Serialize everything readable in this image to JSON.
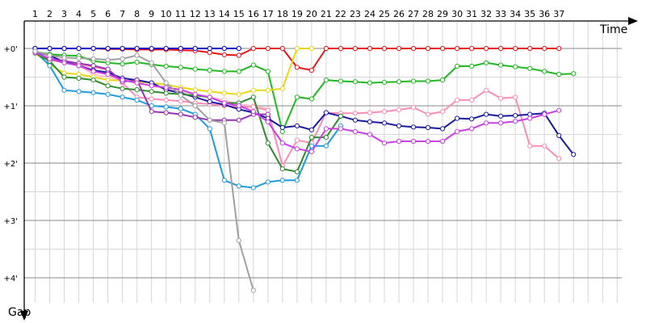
{
  "chart_data": {
    "type": "line",
    "xlabel": "Time",
    "ylabel": "Gap",
    "x_ticks": [
      "1",
      "2",
      "3",
      "4",
      "5",
      "6",
      "7",
      "8",
      "9",
      "10",
      "11",
      "12",
      "13",
      "14",
      "15",
      "16",
      "17",
      "18",
      "19",
      "20",
      "21",
      "22",
      "23",
      "24",
      "25",
      "26",
      "27",
      "28",
      "29",
      "30",
      "31",
      "32",
      "33",
      "34",
      "35",
      "36",
      "37"
    ],
    "y_ticks": [
      "+0'",
      "+1'",
      "+2'",
      "+3'",
      "+4'"
    ],
    "y_tick_values": [
      0,
      1,
      2,
      3,
      4
    ],
    "ylim": [
      0,
      4.4
    ],
    "xlim": [
      0.55,
      38.1
    ],
    "y_reversed": true,
    "grid": true,
    "series": [
      {
        "color": "#e8141a",
        "points": [
          [
            1,
            0
          ],
          [
            2,
            0
          ],
          [
            3,
            0
          ],
          [
            4,
            0
          ],
          [
            5,
            0
          ],
          [
            6,
            0.01
          ],
          [
            7,
            0.01
          ],
          [
            8,
            0.02
          ],
          [
            9,
            0.02
          ],
          [
            10,
            0.02
          ],
          [
            11,
            0.03
          ],
          [
            12,
            0.04
          ],
          [
            13,
            0.07
          ],
          [
            14,
            0.11
          ],
          [
            15,
            0.12
          ],
          [
            16,
            0
          ],
          [
            17,
            0
          ],
          [
            18,
            0
          ],
          [
            19,
            0.33
          ],
          [
            20,
            0.38
          ],
          [
            21,
            0
          ],
          [
            22,
            0
          ],
          [
            23,
            0
          ],
          [
            24,
            0
          ],
          [
            25,
            0
          ],
          [
            26,
            0
          ],
          [
            27,
            0
          ],
          [
            28,
            0
          ],
          [
            29,
            0
          ],
          [
            30,
            0
          ],
          [
            31,
            0
          ],
          [
            32,
            0
          ],
          [
            33,
            0
          ],
          [
            34,
            0
          ],
          [
            35,
            0
          ],
          [
            36,
            0
          ],
          [
            37,
            0
          ]
        ]
      },
      {
        "color": "#0000c8",
        "points": [
          [
            1,
            0
          ],
          [
            2,
            0
          ],
          [
            3,
            0
          ],
          [
            4,
            0
          ],
          [
            5,
            0
          ],
          [
            6,
            0
          ],
          [
            7,
            0
          ],
          [
            8,
            0
          ],
          [
            9,
            0
          ],
          [
            10,
            0
          ],
          [
            11,
            0
          ],
          [
            12,
            0
          ],
          [
            13,
            0
          ],
          [
            14,
            0
          ],
          [
            15,
            0
          ]
        ]
      },
      {
        "color": "#22b822",
        "points": [
          [
            1,
            0.06
          ],
          [
            2,
            0.1
          ],
          [
            3,
            0.12
          ],
          [
            4,
            0.13
          ],
          [
            5,
            0.22
          ],
          [
            6,
            0.25
          ],
          [
            7,
            0.27
          ],
          [
            8,
            0.24
          ],
          [
            9,
            0.28
          ],
          [
            10,
            0.31
          ],
          [
            11,
            0.33
          ],
          [
            12,
            0.36
          ],
          [
            13,
            0.38
          ],
          [
            14,
            0.4
          ],
          [
            15,
            0.4
          ],
          [
            16,
            0.29
          ],
          [
            17,
            0.4
          ],
          [
            18,
            1.45
          ],
          [
            19,
            0.85
          ],
          [
            20,
            0.88
          ],
          [
            21,
            0.55
          ],
          [
            22,
            0.57
          ],
          [
            23,
            0.58
          ],
          [
            24,
            0.6
          ],
          [
            25,
            0.59
          ],
          [
            26,
            0.58
          ],
          [
            27,
            0.57
          ],
          [
            28,
            0.57
          ],
          [
            29,
            0.55
          ],
          [
            30,
            0.31
          ],
          [
            31,
            0.31
          ],
          [
            32,
            0.25
          ],
          [
            33,
            0.29
          ],
          [
            34,
            0.32
          ],
          [
            35,
            0.35
          ],
          [
            36,
            0.4
          ],
          [
            37,
            0.45
          ],
          [
            38,
            0.44
          ]
        ]
      },
      {
        "color": "#ffc0cb",
        "points": [
          [
            1,
            0.08
          ],
          [
            2,
            0.15
          ],
          [
            3,
            0.2
          ],
          [
            4,
            0.3
          ],
          [
            5,
            0.45
          ],
          [
            6,
            0.5
          ],
          [
            7,
            0.55
          ],
          [
            8,
            0.6
          ],
          [
            9,
            0.65
          ],
          [
            10,
            0.7
          ],
          [
            11,
            0.75
          ],
          [
            12,
            0.8
          ],
          [
            13,
            0.85
          ],
          [
            14,
            0.9
          ],
          [
            15,
            0.98
          ],
          [
            16,
            1.0
          ],
          [
            17,
            1.05
          ],
          [
            18,
            2.05
          ]
        ]
      },
      {
        "color": "#e8d814",
        "points": [
          [
            1,
            0.08
          ],
          [
            2,
            0.28
          ],
          [
            3,
            0.43
          ],
          [
            4,
            0.45
          ],
          [
            5,
            0.5
          ],
          [
            6,
            0.55
          ],
          [
            7,
            0.56
          ],
          [
            8,
            0.58
          ],
          [
            9,
            0.6
          ],
          [
            10,
            0.63
          ],
          [
            11,
            0.68
          ],
          [
            12,
            0.72
          ],
          [
            13,
            0.75
          ],
          [
            14,
            0.78
          ],
          [
            15,
            0.8
          ],
          [
            16,
            0.73
          ],
          [
            17,
            0.73
          ],
          [
            18,
            0.7
          ],
          [
            19,
            0
          ],
          [
            20,
            0
          ]
        ]
      },
      {
        "color": "#ff8cb4",
        "points": [
          [
            1,
            0.08
          ],
          [
            2,
            0.2
          ],
          [
            3,
            0.25
          ],
          [
            4,
            0.28
          ],
          [
            5,
            0.32
          ],
          [
            6,
            0.38
          ],
          [
            7,
            0.6
          ],
          [
            8,
            0.85
          ],
          [
            9,
            0.88
          ],
          [
            10,
            0.9
          ],
          [
            11,
            0.92
          ],
          [
            12,
            0.95
          ],
          [
            13,
            0.97
          ],
          [
            14,
            1.0
          ],
          [
            15,
            1.02
          ],
          [
            16,
            1.02
          ],
          [
            17,
            1.08
          ],
          [
            18,
            2.05
          ],
          [
            19,
            1.6
          ],
          [
            20,
            1.65
          ],
          [
            21,
            1.12
          ],
          [
            22,
            1.13
          ],
          [
            23,
            1.13
          ],
          [
            24,
            1.12
          ],
          [
            25,
            1.1
          ],
          [
            26,
            1.07
          ],
          [
            27,
            1.03
          ],
          [
            28,
            1.15
          ],
          [
            29,
            1.1
          ],
          [
            30,
            0.9
          ],
          [
            31,
            0.9
          ],
          [
            32,
            0.73
          ],
          [
            33,
            0.87
          ],
          [
            34,
            0.85
          ],
          [
            35,
            1.7
          ],
          [
            36,
            1.7
          ],
          [
            37,
            1.92
          ]
        ]
      },
      {
        "color": "#1a1aa0",
        "points": [
          [
            1,
            0.06
          ],
          [
            2,
            0.12
          ],
          [
            3,
            0.24
          ],
          [
            4,
            0.3
          ],
          [
            5,
            0.38
          ],
          [
            6,
            0.42
          ],
          [
            7,
            0.52
          ],
          [
            8,
            0.55
          ],
          [
            9,
            0.6
          ],
          [
            10,
            0.72
          ],
          [
            11,
            0.78
          ],
          [
            12,
            0.85
          ],
          [
            13,
            0.93
          ],
          [
            14,
            0.98
          ],
          [
            15,
            1.06
          ],
          [
            16,
            1.12
          ],
          [
            17,
            1.22
          ],
          [
            18,
            1.38
          ],
          [
            19,
            1.35
          ],
          [
            20,
            1.42
          ],
          [
            21,
            1.12
          ],
          [
            22,
            1.18
          ],
          [
            23,
            1.25
          ],
          [
            24,
            1.28
          ],
          [
            25,
            1.3
          ],
          [
            26,
            1.35
          ],
          [
            27,
            1.37
          ],
          [
            28,
            1.38
          ],
          [
            29,
            1.4
          ],
          [
            30,
            1.22
          ],
          [
            31,
            1.23
          ],
          [
            32,
            1.15
          ],
          [
            33,
            1.18
          ],
          [
            34,
            1.17
          ],
          [
            35,
            1.15
          ],
          [
            36,
            1.13
          ],
          [
            37,
            1.52
          ],
          [
            38,
            1.85
          ]
        ]
      },
      {
        "color": "#1e9be0",
        "points": [
          [
            1,
            0.05
          ],
          [
            2,
            0.3
          ],
          [
            3,
            0.73
          ],
          [
            4,
            0.75
          ],
          [
            5,
            0.77
          ],
          [
            6,
            0.8
          ],
          [
            7,
            0.85
          ],
          [
            8,
            0.9
          ],
          [
            9,
            1.0
          ],
          [
            10,
            1.02
          ],
          [
            11,
            1.05
          ],
          [
            12,
            1.15
          ],
          [
            13,
            1.4
          ],
          [
            14,
            2.3
          ],
          [
            15,
            2.4
          ],
          [
            16,
            2.43
          ],
          [
            17,
            2.33
          ],
          [
            18,
            2.3
          ],
          [
            19,
            2.3
          ],
          [
            20,
            1.7
          ],
          [
            21,
            1.7
          ],
          [
            22,
            1.35
          ]
        ]
      },
      {
        "color": "#2e8b2e",
        "points": [
          [
            1,
            0.08
          ],
          [
            2,
            0.22
          ],
          [
            3,
            0.5
          ],
          [
            4,
            0.52
          ],
          [
            5,
            0.55
          ],
          [
            6,
            0.65
          ],
          [
            7,
            0.7
          ],
          [
            8,
            0.72
          ],
          [
            9,
            0.75
          ],
          [
            10,
            0.78
          ],
          [
            11,
            0.8
          ],
          [
            12,
            0.82
          ],
          [
            13,
            0.85
          ],
          [
            14,
            0.95
          ],
          [
            15,
            0.95
          ],
          [
            16,
            0.85
          ],
          [
            17,
            1.65
          ],
          [
            18,
            2.1
          ],
          [
            19,
            2.15
          ],
          [
            20,
            1.55
          ],
          [
            21,
            1.55
          ],
          [
            22,
            1.18
          ]
        ]
      },
      {
        "color": "#9632b4",
        "points": [
          [
            1,
            0.07
          ],
          [
            2,
            0.18
          ],
          [
            3,
            0.22
          ],
          [
            4,
            0.26
          ],
          [
            5,
            0.3
          ],
          [
            6,
            0.36
          ],
          [
            7,
            0.58
          ],
          [
            8,
            0.55
          ],
          [
            9,
            1.1
          ],
          [
            10,
            1.12
          ],
          [
            11,
            1.15
          ],
          [
            12,
            1.2
          ],
          [
            13,
            1.25
          ],
          [
            14,
            1.25
          ],
          [
            15,
            1.25
          ],
          [
            16,
            1.15
          ],
          [
            17,
            1.15
          ]
        ]
      },
      {
        "color": "#c840e6",
        "points": [
          [
            1,
            0.07
          ],
          [
            2,
            0.18
          ],
          [
            3,
            0.25
          ],
          [
            4,
            0.3
          ],
          [
            5,
            0.4
          ],
          [
            6,
            0.45
          ],
          [
            7,
            0.55
          ],
          [
            8,
            0.6
          ],
          [
            9,
            0.65
          ],
          [
            10,
            0.68
          ],
          [
            11,
            0.72
          ],
          [
            12,
            0.8
          ],
          [
            13,
            0.85
          ],
          [
            14,
            0.95
          ],
          [
            15,
            1.0
          ],
          [
            16,
            1.1
          ],
          [
            17,
            1.28
          ],
          [
            18,
            1.65
          ],
          [
            19,
            1.75
          ],
          [
            20,
            1.8
          ],
          [
            21,
            1.4
          ],
          [
            22,
            1.4
          ],
          [
            23,
            1.45
          ],
          [
            24,
            1.5
          ],
          [
            25,
            1.65
          ],
          [
            26,
            1.62
          ],
          [
            27,
            1.62
          ],
          [
            28,
            1.62
          ],
          [
            29,
            1.62
          ],
          [
            30,
            1.45
          ],
          [
            31,
            1.4
          ],
          [
            32,
            1.3
          ],
          [
            33,
            1.3
          ],
          [
            34,
            1.27
          ],
          [
            35,
            1.22
          ],
          [
            36,
            1.15
          ],
          [
            37,
            1.08
          ]
        ]
      },
      {
        "color": "#a0a0a0",
        "points": [
          [
            1,
            0.05
          ],
          [
            2,
            0.12
          ],
          [
            3,
            0.16
          ],
          [
            4,
            0.17
          ],
          [
            5,
            0.18
          ],
          [
            6,
            0.2
          ],
          [
            7,
            0.18
          ],
          [
            8,
            0.12
          ],
          [
            9,
            0.25
          ],
          [
            10,
            0.6
          ],
          [
            11,
            0.82
          ],
          [
            12,
            1.0
          ],
          [
            13,
            1.25
          ],
          [
            14,
            1.3
          ],
          [
            15,
            3.35
          ],
          [
            16,
            4.22
          ]
        ]
      }
    ]
  }
}
